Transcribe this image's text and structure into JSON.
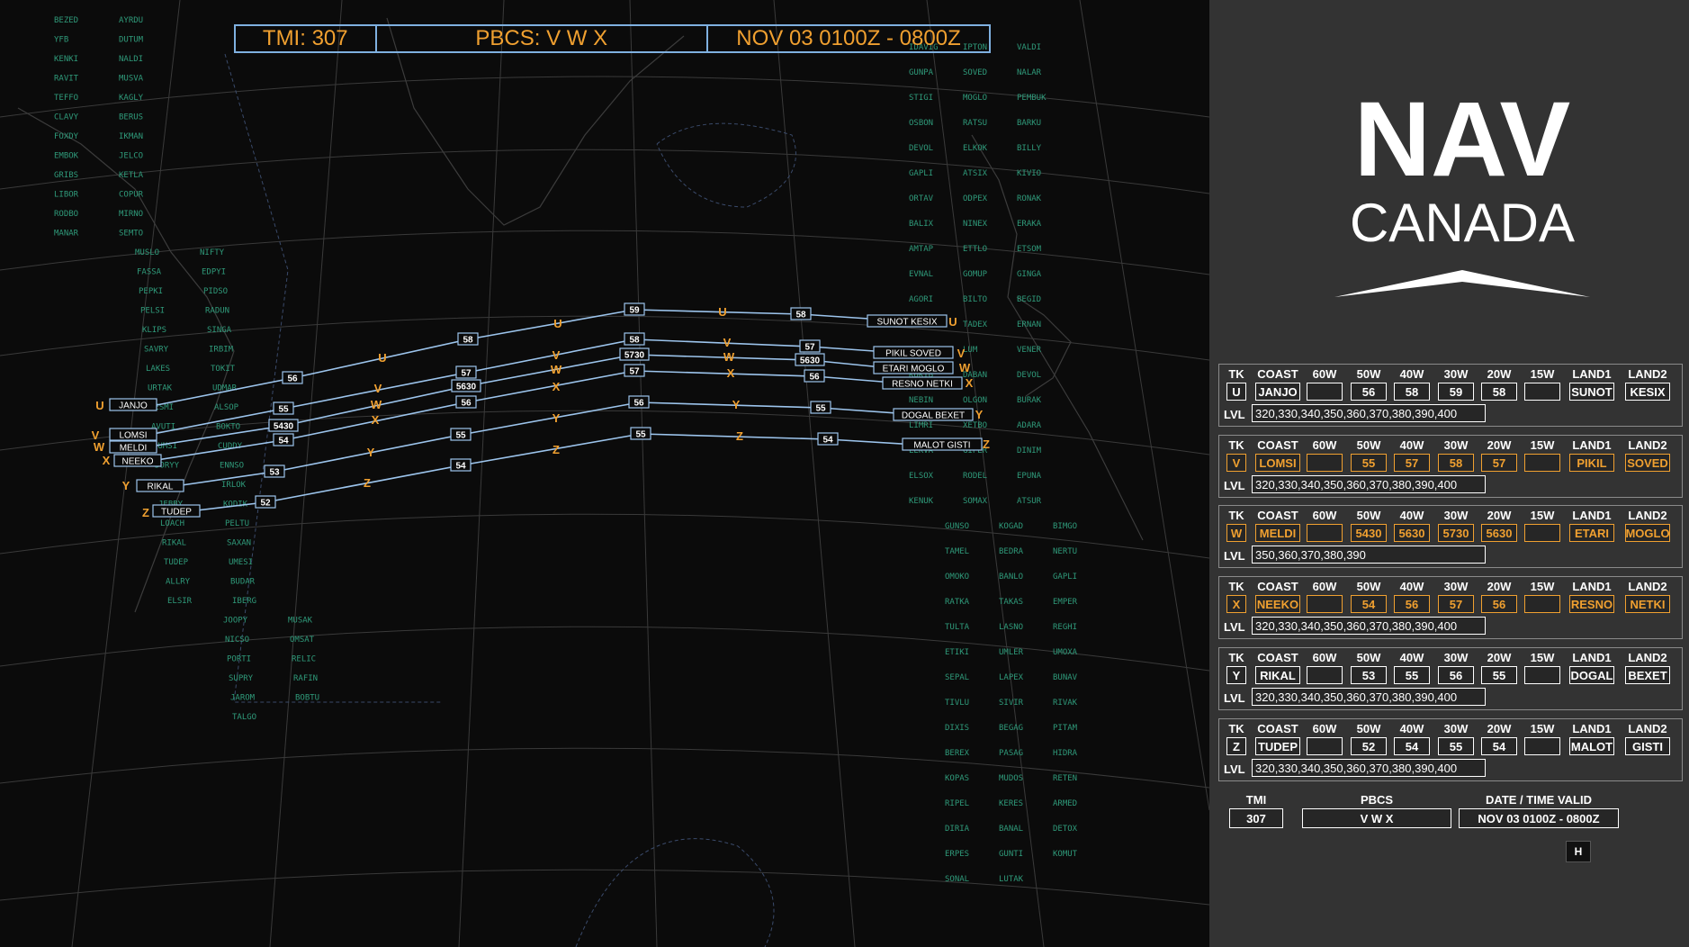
{
  "header": {
    "tmi_label": "TMI: 307",
    "pbcs_label": "PBCS:  V W X",
    "validity": "NOV 03   0100Z - 0800Z"
  },
  "logo": {
    "line1": "NAV",
    "line2": "CANADA"
  },
  "columns": [
    "TK",
    "COAST",
    "60W",
    "50W",
    "40W",
    "30W",
    "20W",
    "15W",
    "LAND1",
    "LAND2"
  ],
  "level_label": "LVL",
  "tracks": [
    {
      "tk": "U",
      "coast": "JANJO",
      "w60": "",
      "w50": "56",
      "w40": "58",
      "w30": "59",
      "w20": "58",
      "w15": "",
      "land1": "SUNOT",
      "land2": "KESIX",
      "levels": "320,330,340,350,360,370,380,390,400",
      "pbcs": false
    },
    {
      "tk": "V",
      "coast": "LOMSI",
      "w60": "",
      "w50": "55",
      "w40": "57",
      "w30": "58",
      "w20": "57",
      "w15": "",
      "land1": "PIKIL",
      "land2": "SOVED",
      "levels": "320,330,340,350,360,370,380,390,400",
      "pbcs": true
    },
    {
      "tk": "W",
      "coast": "MELDI",
      "w60": "",
      "w50": "5430",
      "w40": "5630",
      "w30": "5730",
      "w20": "5630",
      "w15": "",
      "land1": "ETARI",
      "land2": "MOGLO",
      "levels": "350,360,370,380,390",
      "pbcs": true
    },
    {
      "tk": "X",
      "coast": "NEEKO",
      "w60": "",
      "w50": "54",
      "w40": "56",
      "w30": "57",
      "w20": "56",
      "w15": "",
      "land1": "RESNO",
      "land2": "NETKI",
      "levels": "320,330,340,350,360,370,380,390,400",
      "pbcs": true
    },
    {
      "tk": "Y",
      "coast": "RIKAL",
      "w60": "",
      "w50": "53",
      "w40": "55",
      "w30": "56",
      "w20": "55",
      "w15": "",
      "land1": "DOGAL",
      "land2": "BEXET",
      "levels": "320,330,340,350,360,370,380,390,400",
      "pbcs": false
    },
    {
      "tk": "Z",
      "coast": "TUDEP",
      "w60": "",
      "w50": "52",
      "w40": "54",
      "w30": "55",
      "w20": "54",
      "w15": "",
      "land1": "MALOT",
      "land2": "GISTI",
      "levels": "320,330,340,350,360,370,380,390,400",
      "pbcs": false
    }
  ],
  "footer": {
    "tmi_label": "TMI",
    "tmi_value": "307",
    "pbcs_label": "PBCS",
    "pbcs_value": "V W X",
    "date_label": "DATE / TIME VALID",
    "date_value": "NOV 03  0100Z - 0800Z"
  },
  "h_button": "H",
  "map": {
    "coast_labels": {
      "U": "JANJO",
      "V": "LOMSI",
      "W": "MELDI",
      "X": "NEEKO",
      "Y": "RIKAL",
      "Z": "TUDEP"
    },
    "land_labels": {
      "U": "SUNOT  KESIX",
      "V": "PIKIL  SOVED",
      "W": "ETARI  MOGLO",
      "X": "RESNO  NETKI",
      "Y": "DOGAL  BEXET",
      "Z": "MALOT  GISTI"
    },
    "waypoints_west": [
      "BEZED",
      "AYRDU",
      "YFB",
      "DUTUM",
      "KENKI",
      "NALDI",
      "RAVIT",
      "MUSVA",
      "TEFFO",
      "KAGLY",
      "CLAVY",
      "BERUS",
      "FOXDY",
      "IKMAN",
      "EMBOK",
      "JELCO",
      "GRIBS",
      "KETLA",
      "LIBOR",
      "COPUR",
      "RODBO",
      "MIRNO",
      "MANAR",
      "SEMTO",
      "MUSLO",
      "NIFTY",
      "FASSA",
      "EDPYI",
      "PEPKI",
      "PIDSO",
      "PELSI",
      "RADUN",
      "KLIPS",
      "SINGA",
      "SAVRY",
      "IRBIM",
      "LAKES",
      "TOKIT",
      "URTAK",
      "UDMAR",
      "VESMI",
      "ALSOP",
      "AVUTI",
      "BOKTO",
      "DUMSI",
      "CUDDY",
      "DORYY",
      "ENNSO",
      "HOIST",
      "IRLOK",
      "JEBBY",
      "KODIK",
      "LOACH",
      "PELTU",
      "RIKAL",
      "SAXAN",
      "TUDEP",
      "UMESI",
      "ALLRY",
      "BUDAR",
      "ELSIR",
      "IBERG",
      "JOOPY",
      "MUSAK",
      "NICSO",
      "OMSAT",
      "PORTI",
      "RELIC",
      "SUPRY",
      "RAFIN",
      "JAROM",
      "BOBTU",
      "TALGO"
    ],
    "waypoints_east": [
      "IDAVIG",
      "IPTON",
      "VALDI",
      "GUNPA",
      "SOVED",
      "NALAR",
      "STIGI",
      "MOGLO",
      "PEMBUK",
      "OSBON",
      "RATSU",
      "BARKU",
      "DEVOL",
      "ELKOK",
      "BILLY",
      "GAPLI",
      "ATSIX",
      "KIVIO",
      "ORTAV",
      "ODPEX",
      "RONAK",
      "BALIX",
      "NINEX",
      "ERAKA",
      "AMTAP",
      "ETTLO",
      "ETSOM",
      "EVNAL",
      "GOMUP",
      "GINGA",
      "AGORI",
      "BILTO",
      "BEGID",
      "ELPIN",
      "TADEX",
      "ERNAN",
      "MOLAK",
      "LUM",
      "VENER",
      "KOKIB",
      "DABAN",
      "DEVOL",
      "NEBIN",
      "OLGON",
      "BURAK",
      "LIMRI",
      "XETBO",
      "ADARA",
      "LEKVA",
      "GIPER",
      "DINIM",
      "ELSOX",
      "RODEL",
      "EPUNA",
      "KENUK",
      "SOMAX",
      "ATSUR",
      "GUNSO",
      "KOGAD",
      "BIMGO",
      "TAMEL",
      "BEDRA",
      "NERTU",
      "OMOKO",
      "BANLO",
      "GAPLI",
      "RATKA",
      "TAKAS",
      "EMPER",
      "TULTA",
      "LASNO",
      "REGHI",
      "ETIKI",
      "UMLER",
      "UMOXA",
      "SEPAL",
      "LAPEX",
      "BUNAV",
      "TIVLU",
      "SIVIR",
      "RIVAK",
      "DIXIS",
      "BEGAG",
      "PITAM",
      "BEREX",
      "PASAG",
      "HIDRA",
      "KOPAS",
      "MUDOS",
      "RETEN",
      "RIPEL",
      "KERES",
      "ARMED",
      "DIRIA",
      "BANAL",
      "DETOX",
      "ERPES",
      "GUNTI",
      "KOMUT",
      "SONAL",
      "LUTAK"
    ]
  }
}
